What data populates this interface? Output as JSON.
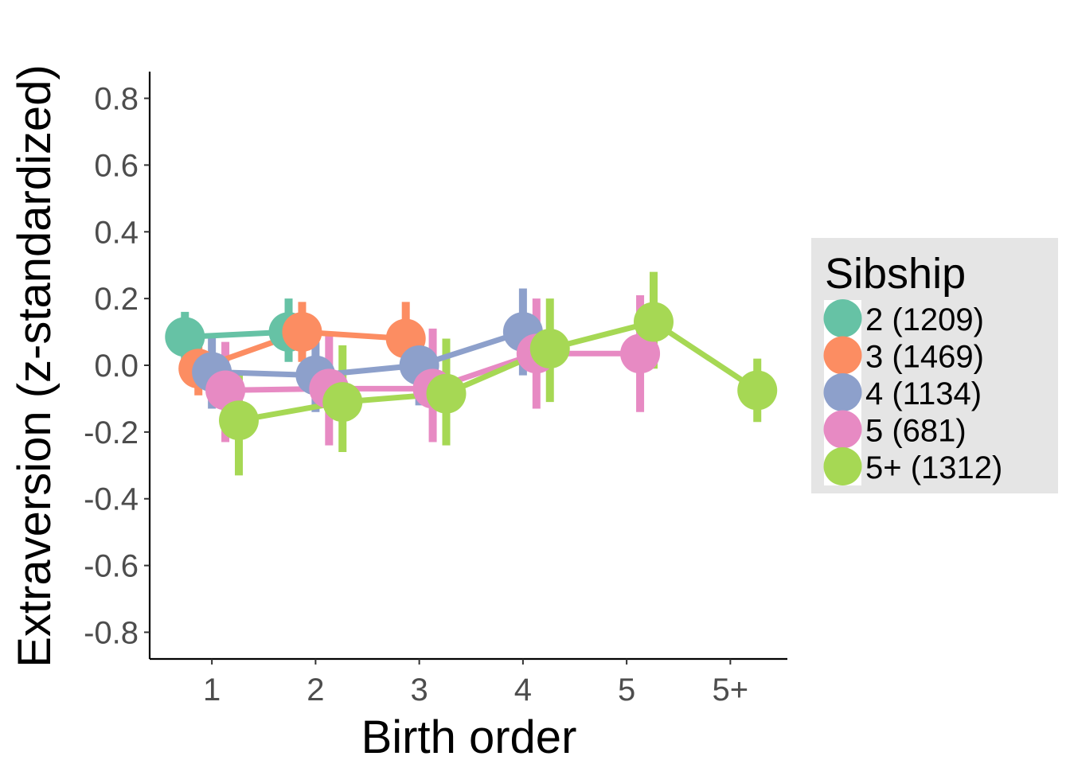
{
  "chart_data": {
    "type": "line",
    "title": "",
    "xlabel": "Birth order",
    "ylabel": "Extraversion (z-standardized)",
    "categories": [
      "1",
      "2",
      "3",
      "4",
      "5",
      "5+"
    ],
    "ylim": [
      -0.88,
      0.88
    ],
    "yticks": [
      {
        "value": 0.8,
        "label": "0.8"
      },
      {
        "value": 0.6,
        "label": "0.6"
      },
      {
        "value": 0.4,
        "label": "0.4"
      },
      {
        "value": 0.2,
        "label": "0.2"
      },
      {
        "value": 0.0,
        "label": "0.0"
      },
      {
        "value": -0.2,
        "label": "-0.2"
      },
      {
        "value": -0.4,
        "label": "-0.4"
      },
      {
        "value": -0.6,
        "label": "-0.6"
      },
      {
        "value": -0.8,
        "label": "-0.8"
      }
    ],
    "grid": false,
    "error_bars": true,
    "legend": {
      "title": "Sibship",
      "position": "right"
    },
    "series": [
      {
        "name": "2 (1209)",
        "color": "#66c2a5",
        "dodge": -0.2,
        "points": [
          {
            "x": "1",
            "y": 0.085,
            "lo": 0.01,
            "hi": 0.16
          },
          {
            "x": "2",
            "y": 0.1,
            "lo": 0.01,
            "hi": 0.2
          }
        ]
      },
      {
        "name": "3 (1469)",
        "color": "#fc8d62",
        "dodge": -0.1,
        "points": [
          {
            "x": "1",
            "y": -0.01,
            "lo": -0.09,
            "hi": 0.07
          },
          {
            "x": "2",
            "y": 0.1,
            "lo": 0.01,
            "hi": 0.19
          },
          {
            "x": "3",
            "y": 0.08,
            "lo": -0.01,
            "hi": 0.19
          }
        ]
      },
      {
        "name": "4 (1134)",
        "color": "#8da0cb",
        "dodge": 0.0,
        "points": [
          {
            "x": "1",
            "y": -0.02,
            "lo": -0.13,
            "hi": 0.09
          },
          {
            "x": "2",
            "y": -0.03,
            "lo": -0.14,
            "hi": 0.07
          },
          {
            "x": "3",
            "y": 0.0,
            "lo": -0.12,
            "hi": 0.11
          },
          {
            "x": "4",
            "y": 0.1,
            "lo": -0.03,
            "hi": 0.23
          }
        ]
      },
      {
        "name": "5 (681)",
        "color": "#e78ac3",
        "dodge": 0.1,
        "points": [
          {
            "x": "1",
            "y": -0.075,
            "lo": -0.23,
            "hi": 0.07
          },
          {
            "x": "2",
            "y": -0.07,
            "lo": -0.24,
            "hi": 0.09
          },
          {
            "x": "3",
            "y": -0.07,
            "lo": -0.23,
            "hi": 0.11
          },
          {
            "x": "4",
            "y": 0.035,
            "lo": -0.13,
            "hi": 0.2
          },
          {
            "x": "5",
            "y": 0.035,
            "lo": -0.14,
            "hi": 0.21
          }
        ]
      },
      {
        "name": "5+ (1312)",
        "color": "#a6d854",
        "dodge": 0.2,
        "points": [
          {
            "x": "1",
            "y": -0.165,
            "lo": -0.33,
            "hi": -0.02
          },
          {
            "x": "2",
            "y": -0.11,
            "lo": -0.26,
            "hi": 0.06
          },
          {
            "x": "3",
            "y": -0.085,
            "lo": -0.24,
            "hi": 0.08
          },
          {
            "x": "4",
            "y": 0.05,
            "lo": -0.11,
            "hi": 0.2
          },
          {
            "x": "5",
            "y": 0.13,
            "lo": -0.01,
            "hi": 0.28
          },
          {
            "x": "5+",
            "y": -0.075,
            "lo": -0.17,
            "hi": 0.02
          }
        ]
      }
    ]
  }
}
